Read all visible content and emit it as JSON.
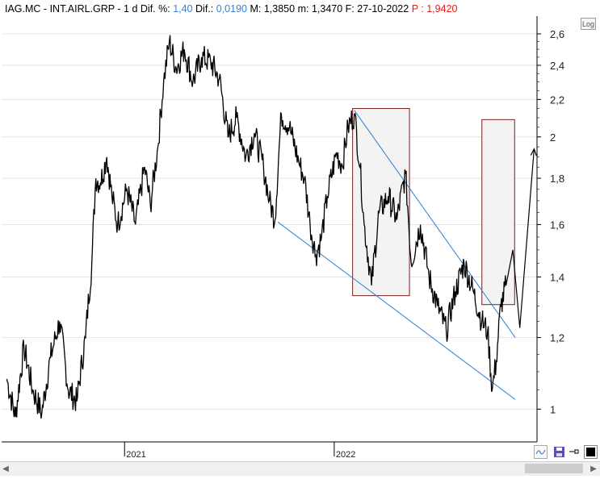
{
  "header": {
    "symbol": "IAG.MC",
    "name": "INT.AIRL.GRP",
    "period": "1 d",
    "dif_pct_label": "Dif. %:",
    "dif_pct_value": "1,40",
    "dif_label": "Dif.:",
    "dif_value": "0,0190",
    "max_label": "M:",
    "max_value": "1,3850",
    "min_label": "m:",
    "min_value": "1,3470",
    "date_label": "F:",
    "date_value": "27-10-2022",
    "price_label": "P :",
    "price_value": "1,9420"
  },
  "log_button": "Log",
  "colors": {
    "price": "#000000",
    "trendline": "#2a7fd4",
    "box_border": "#7a1e1e",
    "box_fill": "#f3f3f3",
    "header_value_blue": "#3a7fd0",
    "header_price_red": "#e0201a",
    "axis": "#000000"
  },
  "icons": [
    "log-scale-button",
    "wave-icon",
    "save-icon",
    "pin-icon",
    "color-square-icon",
    "scroll-left-icon",
    "scroll-right-icon"
  ],
  "chart_data": {
    "type": "line",
    "scale": "log",
    "ylim": [
      0.92,
      2.72
    ],
    "xlim": [
      "2020-06-01",
      "2022-12-20"
    ],
    "y_ticks": [
      {
        "value": 1.0,
        "label": "1"
      },
      {
        "value": 1.2,
        "label": "1,2"
      },
      {
        "value": 1.4,
        "label": "1,4"
      },
      {
        "value": 1.6,
        "label": "1,6"
      },
      {
        "value": 1.8,
        "label": "1,8"
      },
      {
        "value": 2.0,
        "label": "2"
      },
      {
        "value": 2.2,
        "label": "2,2"
      },
      {
        "value": 2.4,
        "label": "2,4"
      },
      {
        "value": 2.6,
        "label": "2,6"
      }
    ],
    "x_ticks": [
      {
        "date": "2021-01-01",
        "label": "2021"
      },
      {
        "date": "2022-01-01",
        "label": "2022"
      }
    ],
    "grid": "horizontal",
    "series": [
      {
        "points": [
          [
            "2020-06-10",
            1.08
          ],
          [
            "2020-06-25",
            0.98
          ],
          [
            "2020-07-10",
            1.17
          ],
          [
            "2020-07-25",
            1.05
          ],
          [
            "2020-08-10",
            0.99
          ],
          [
            "2020-08-25",
            1.14
          ],
          [
            "2020-09-10",
            1.25
          ],
          [
            "2020-09-25",
            1.05
          ],
          [
            "2020-10-10",
            1.02
          ],
          [
            "2020-10-25",
            1.2
          ],
          [
            "2020-11-05",
            1.45
          ],
          [
            "2020-11-12",
            1.8
          ],
          [
            "2020-11-20",
            1.78
          ],
          [
            "2020-12-01",
            1.9
          ],
          [
            "2020-12-10",
            1.72
          ],
          [
            "2020-12-20",
            1.6
          ],
          [
            "2021-01-05",
            1.75
          ],
          [
            "2021-01-20",
            1.6
          ],
          [
            "2021-02-05",
            1.85
          ],
          [
            "2021-02-15",
            1.68
          ],
          [
            "2021-02-28",
            1.95
          ],
          [
            "2021-03-10",
            2.3
          ],
          [
            "2021-03-20",
            2.55
          ],
          [
            "2021-04-01",
            2.38
          ],
          [
            "2021-04-15",
            2.5
          ],
          [
            "2021-04-30",
            2.3
          ],
          [
            "2021-05-15",
            2.45
          ],
          [
            "2021-05-31",
            2.42
          ],
          [
            "2021-06-15",
            2.32
          ],
          [
            "2021-06-30",
            2.0
          ],
          [
            "2021-07-15",
            2.1
          ],
          [
            "2021-07-31",
            1.9
          ],
          [
            "2021-08-15",
            2.02
          ],
          [
            "2021-08-31",
            1.85
          ],
          [
            "2021-09-10",
            1.7
          ],
          [
            "2021-09-20",
            1.62
          ],
          [
            "2021-10-01",
            2.12
          ],
          [
            "2021-10-15",
            2.05
          ],
          [
            "2021-10-31",
            1.88
          ],
          [
            "2021-11-10",
            1.8
          ],
          [
            "2021-11-20",
            1.6
          ],
          [
            "2021-11-30",
            1.48
          ],
          [
            "2021-12-10",
            1.55
          ],
          [
            "2021-12-20",
            1.72
          ],
          [
            "2022-01-05",
            1.92
          ],
          [
            "2022-01-15",
            1.86
          ],
          [
            "2022-01-25",
            2.05
          ],
          [
            "2022-02-05",
            2.12
          ],
          [
            "2022-02-15",
            1.85
          ],
          [
            "2022-02-22",
            1.6
          ],
          [
            "2022-03-07",
            1.37
          ],
          [
            "2022-03-20",
            1.65
          ],
          [
            "2022-04-05",
            1.72
          ],
          [
            "2022-04-20",
            1.62
          ],
          [
            "2022-05-05",
            1.82
          ],
          [
            "2022-05-15",
            1.45
          ],
          [
            "2022-05-31",
            1.6
          ],
          [
            "2022-06-15",
            1.4
          ],
          [
            "2022-06-30",
            1.3
          ],
          [
            "2022-07-15",
            1.22
          ],
          [
            "2022-07-31",
            1.35
          ],
          [
            "2022-08-15",
            1.45
          ],
          [
            "2022-08-31",
            1.35
          ],
          [
            "2022-09-15",
            1.25
          ],
          [
            "2022-09-25",
            1.22
          ],
          [
            "2022-10-03",
            1.05
          ],
          [
            "2022-10-10",
            1.13
          ],
          [
            "2022-10-18",
            1.3
          ],
          [
            "2022-10-27",
            1.37
          ]
        ]
      }
    ],
    "projection": [
      [
        "2022-10-27",
        1.37
      ],
      [
        "2022-11-08",
        1.5
      ],
      [
        "2022-11-20",
        1.23
      ],
      [
        "2022-12-15",
        1.94
      ]
    ],
    "trendlines": [
      {
        "from": [
          "2021-09-25",
          1.61
        ],
        "to": [
          "2022-11-12",
          1.025
        ]
      },
      {
        "from": [
          "2022-02-05",
          2.14
        ],
        "to": [
          "2022-11-12",
          1.2
        ]
      }
    ],
    "boxes": [
      {
        "x0": "2022-02-02",
        "x1": "2022-05-12",
        "y0": 1.335,
        "y1": 2.15
      },
      {
        "x0": "2022-09-15",
        "x1": "2022-11-11",
        "y0": 1.305,
        "y1": 2.09
      }
    ]
  }
}
